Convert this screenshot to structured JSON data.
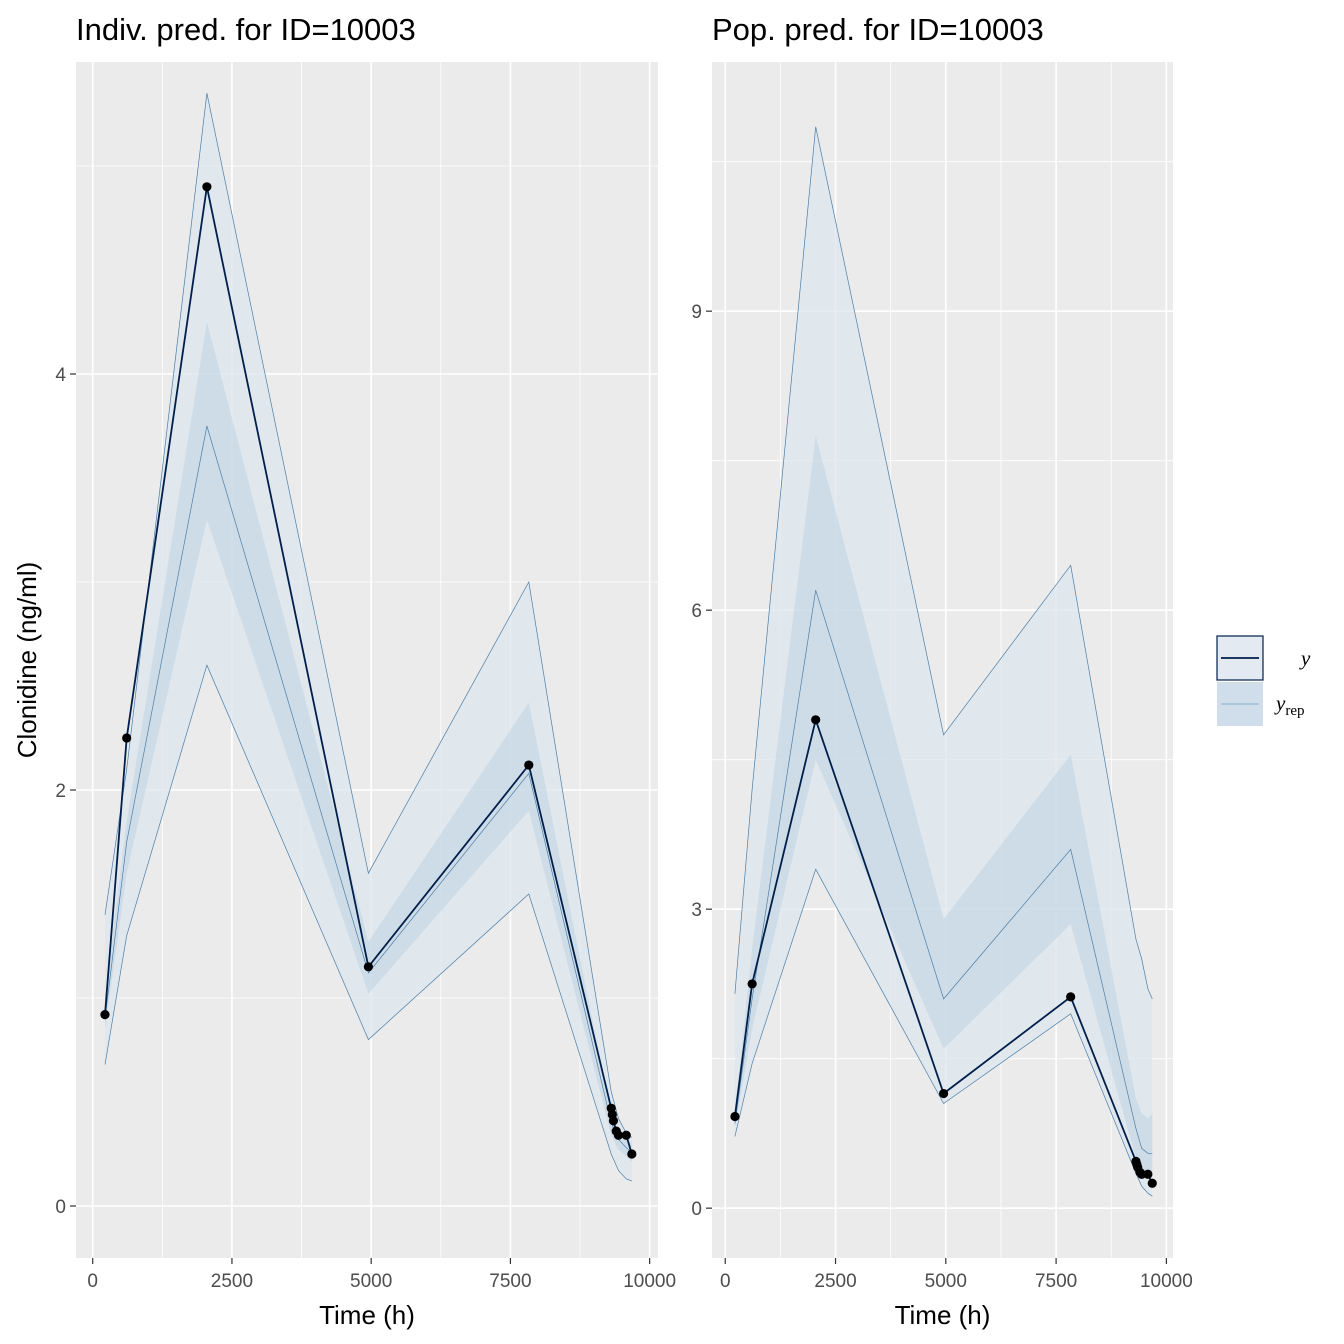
{
  "legend": {
    "entries": [
      {
        "label": "y",
        "sub": "",
        "key": "observed",
        "line_color": "#011f4b",
        "fill_color": "#e3eaf1"
      },
      {
        "label": "y",
        "sub": "rep",
        "key": "replicated",
        "line_color": "#a9c2d6",
        "fill_color": "#cfdeea"
      }
    ]
  },
  "chart_data": [
    {
      "type": "line",
      "title": "Indiv. pred. for ID=10003",
      "xlabel": "Time (h)",
      "ylabel": "Clonidine (ng/ml)",
      "xlim": [
        -300,
        10150
      ],
      "ylim": [
        -0.25,
        5.5
      ],
      "xticks": [
        0,
        2500,
        5000,
        7500,
        10000
      ],
      "xtick_labels": [
        "0",
        "2500",
        "5000",
        "7500",
        "10000"
      ],
      "yticks": [
        0,
        2,
        4
      ],
      "ytick_labels": [
        "0",
        "2",
        "4"
      ],
      "grid": true,
      "series": [
        {
          "name": "y",
          "x": [
            220,
            610,
            2050,
            4950,
            7830,
            9310,
            9330,
            9350,
            9400,
            9440,
            9580,
            9680
          ],
          "values": [
            0.92,
            2.25,
            4.9,
            1.15,
            2.12,
            0.47,
            0.44,
            0.41,
            0.36,
            0.34,
            0.34,
            0.25
          ]
        },
        {
          "name": "y_rep",
          "x": [
            220,
            610,
            2050,
            4950,
            7830,
            9310,
            9440,
            9580,
            9680
          ],
          "outer_low": [
            0.68,
            1.3,
            2.6,
            0.8,
            1.5,
            0.25,
            0.17,
            0.13,
            0.12
          ],
          "inner_low": [
            0.85,
            1.6,
            3.3,
            1.02,
            1.9,
            0.34,
            0.27,
            0.24,
            0.21
          ],
          "median": [
            0.9,
            1.75,
            3.75,
            1.12,
            2.08,
            0.4,
            0.32,
            0.28,
            0.26
          ],
          "inner_high": [
            1.0,
            1.85,
            4.25,
            1.27,
            2.42,
            0.44,
            0.36,
            0.32,
            0.3
          ],
          "outer_high": [
            1.4,
            2.1,
            5.35,
            1.6,
            3.0,
            0.55,
            0.42,
            0.35,
            0.33
          ]
        }
      ]
    },
    {
      "type": "line",
      "title": "Pop. pred. for ID=10003",
      "xlabel": "Time (h)",
      "ylabel": "",
      "xlim": [
        -300,
        10150
      ],
      "ylim": [
        -0.5,
        11.5
      ],
      "xticks": [
        0,
        2500,
        5000,
        7500,
        10000
      ],
      "xtick_labels": [
        "0",
        "2500",
        "5000",
        "7500",
        "10000"
      ],
      "yticks": [
        0,
        3,
        6,
        9
      ],
      "ytick_labels": [
        "0",
        "3",
        "6",
        "9"
      ],
      "grid": true,
      "series": [
        {
          "name": "y",
          "x": [
            220,
            610,
            2050,
            4950,
            7830,
            9310,
            9330,
            9350,
            9400,
            9440,
            9580,
            9680
          ],
          "values": [
            0.92,
            2.25,
            4.9,
            1.15,
            2.12,
            0.47,
            0.44,
            0.41,
            0.36,
            0.34,
            0.34,
            0.25
          ]
        },
        {
          "name": "y_rep",
          "x": [
            220,
            610,
            2050,
            4950,
            7830,
            9310,
            9440,
            9580,
            9680
          ],
          "outer_low": [
            0.72,
            1.45,
            3.4,
            1.05,
            1.95,
            0.35,
            0.22,
            0.15,
            0.12
          ],
          "inner_low": [
            0.8,
            1.8,
            4.5,
            1.6,
            2.85,
            0.5,
            0.4,
            0.35,
            0.32
          ],
          "median": [
            0.85,
            2.1,
            6.2,
            2.1,
            3.6,
            0.8,
            0.6,
            0.55,
            0.55
          ],
          "inner_high": [
            0.95,
            2.6,
            7.75,
            2.9,
            4.55,
            1.1,
            0.95,
            0.9,
            0.95
          ],
          "outer_high": [
            2.15,
            4.2,
            10.85,
            4.75,
            6.45,
            2.7,
            2.5,
            2.2,
            2.1
          ]
        }
      ]
    }
  ]
}
